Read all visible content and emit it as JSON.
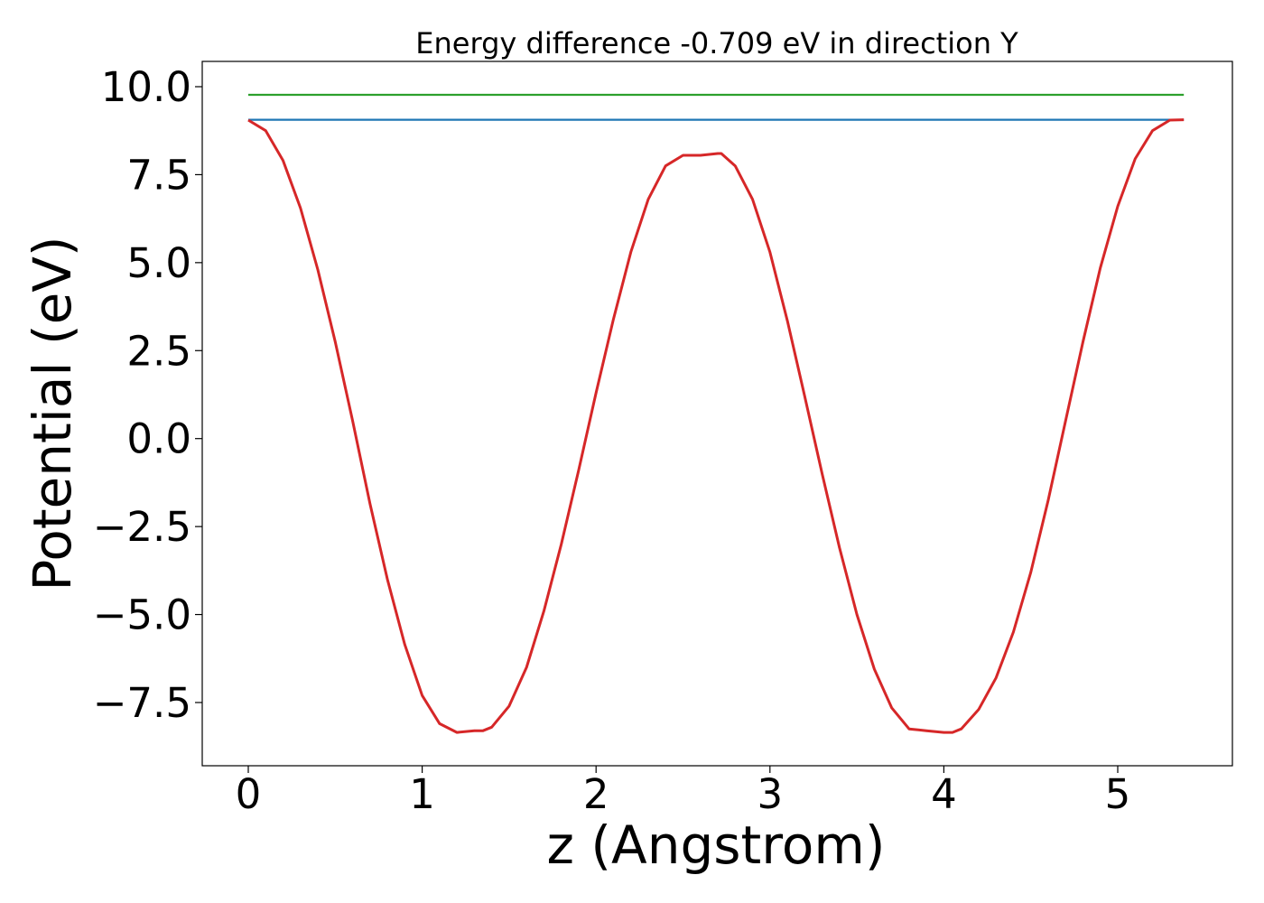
{
  "chart_data": {
    "type": "line",
    "title": "Energy difference -0.709 eV in direction Y",
    "xlabel": "z (Angstrom)",
    "ylabel": "Potential (eV)",
    "xlim": [
      -0.27,
      5.4
    ],
    "ylim": [
      -9.15,
      10.7
    ],
    "xticks": [
      0,
      1,
      2,
      3,
      4,
      5
    ],
    "xtick_labels": [
      "0",
      "1",
      "2",
      "3",
      "4",
      "5"
    ],
    "yticks": [
      10.0,
      7.5,
      5.0,
      2.5,
      0.0,
      -2.5,
      -5.0,
      -7.5
    ],
    "ytick_labels": [
      "10.0",
      "7.5",
      "5.0",
      "2.5",
      "0.0",
      "−2.5",
      "−5.0",
      "−7.5"
    ],
    "grid": false,
    "series": [
      {
        "color": "#2ca02c",
        "kind": "hline",
        "y": 9.77,
        "x_range": [
          0,
          5.38
        ]
      },
      {
        "color": "#1f77b4",
        "kind": "hline",
        "y": 9.06,
        "x_range": [
          0,
          5.38
        ]
      },
      {
        "color": "#d62728",
        "kind": "curve",
        "x": [
          0,
          0.1,
          0.2,
          0.3,
          0.4,
          0.5,
          0.6,
          0.7,
          0.8,
          0.9,
          1.0,
          1.1,
          1.2,
          1.3,
          1.35,
          1.4,
          1.5,
          1.6,
          1.7,
          1.8,
          1.9,
          2.0,
          2.1,
          2.2,
          2.3,
          2.4,
          2.5,
          2.6,
          2.7,
          2.72,
          2.8,
          2.9,
          3.0,
          3.1,
          3.2,
          3.3,
          3.4,
          3.5,
          3.6,
          3.7,
          3.8,
          3.9,
          4.0,
          4.05,
          4.1,
          4.2,
          4.3,
          4.4,
          4.5,
          4.6,
          4.7,
          4.8,
          4.9,
          5.0,
          5.1,
          5.2,
          5.3,
          5.38
        ],
        "y": [
          9.05,
          8.75,
          7.9,
          6.55,
          4.8,
          2.75,
          0.5,
          -1.85,
          -4.0,
          -5.85,
          -7.3,
          -8.1,
          -8.35,
          -8.3,
          -8.3,
          -8.2,
          -7.6,
          -6.5,
          -4.9,
          -3.0,
          -0.9,
          1.3,
          3.4,
          5.3,
          6.8,
          7.75,
          8.05,
          8.05,
          8.1,
          8.1,
          7.75,
          6.8,
          5.3,
          3.35,
          1.2,
          -1.0,
          -3.1,
          -5.0,
          -6.55,
          -7.65,
          -8.25,
          -8.3,
          -8.35,
          -8.35,
          -8.25,
          -7.7,
          -6.8,
          -5.5,
          -3.8,
          -1.75,
          0.5,
          2.75,
          4.85,
          6.6,
          7.95,
          8.75,
          9.05,
          9.06
        ]
      }
    ]
  }
}
